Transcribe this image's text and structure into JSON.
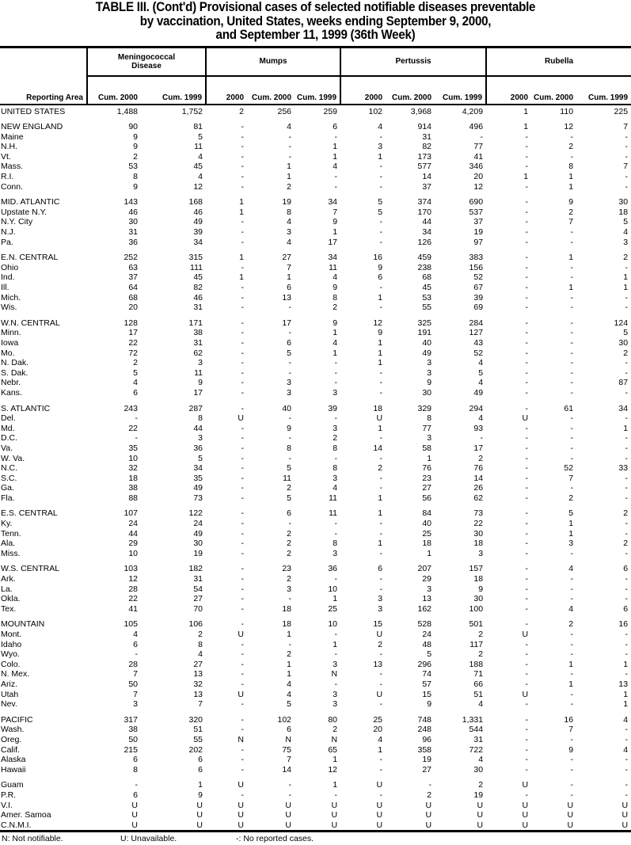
{
  "title": {
    "line1": "TABLE III. (Cont'd) Provisional cases of selected notifiable diseases preventable",
    "line2": "by vaccination, United States, weeks ending September 9, 2000,",
    "line3": "and September 11, 1999 (36th Week)"
  },
  "header": {
    "reporting_area": "Reporting Area",
    "groups": [
      "Meningococcal Disease",
      "Mumps",
      "Pertussis",
      "Rubella"
    ],
    "columns": [
      "Cum. 2000",
      "Cum. 1999",
      "2000",
      "Cum. 2000",
      "Cum. 1999",
      "2000",
      "Cum. 2000",
      "Cum. 1999",
      "2000",
      "Cum. 2000",
      "Cum. 1999"
    ]
  },
  "rows": [
    {
      "area": "UNITED STATES",
      "group": true,
      "values": [
        "1,488",
        "1,752",
        "2",
        "256",
        "259",
        "102",
        "3,968",
        "4,209",
        "1",
        "110",
        "225"
      ]
    },
    {
      "area": "NEW ENGLAND",
      "group": true,
      "values": [
        "90",
        "81",
        "-",
        "4",
        "6",
        "4",
        "914",
        "496",
        "1",
        "12",
        "7"
      ]
    },
    {
      "area": "Maine",
      "values": [
        "9",
        "5",
        "-",
        "-",
        "-",
        "-",
        "31",
        "-",
        "-",
        "-",
        "-"
      ]
    },
    {
      "area": "N.H.",
      "values": [
        "9",
        "11",
        "-",
        "-",
        "1",
        "3",
        "82",
        "77",
        "-",
        "2",
        "-"
      ]
    },
    {
      "area": "Vt.",
      "values": [
        "2",
        "4",
        "-",
        "-",
        "1",
        "1",
        "173",
        "41",
        "-",
        "-",
        "-"
      ]
    },
    {
      "area": "Mass.",
      "values": [
        "53",
        "45",
        "-",
        "1",
        "4",
        "-",
        "577",
        "346",
        "-",
        "8",
        "7"
      ]
    },
    {
      "area": "R.I.",
      "values": [
        "8",
        "4",
        "-",
        "1",
        "-",
        "-",
        "14",
        "20",
        "1",
        "1",
        "-"
      ]
    },
    {
      "area": "Conn.",
      "values": [
        "9",
        "12",
        "-",
        "2",
        "-",
        "-",
        "37",
        "12",
        "-",
        "1",
        "-"
      ]
    },
    {
      "area": "MID. ATLANTIC",
      "group": true,
      "values": [
        "143",
        "168",
        "1",
        "19",
        "34",
        "5",
        "374",
        "690",
        "-",
        "9",
        "30"
      ]
    },
    {
      "area": "Upstate N.Y.",
      "values": [
        "46",
        "46",
        "1",
        "8",
        "7",
        "5",
        "170",
        "537",
        "-",
        "2",
        "18"
      ]
    },
    {
      "area": "N.Y. City",
      "values": [
        "30",
        "49",
        "-",
        "4",
        "9",
        "-",
        "44",
        "37",
        "-",
        "7",
        "5"
      ]
    },
    {
      "area": "N.J.",
      "values": [
        "31",
        "39",
        "-",
        "3",
        "1",
        "-",
        "34",
        "19",
        "-",
        "-",
        "4"
      ]
    },
    {
      "area": "Pa.",
      "values": [
        "36",
        "34",
        "-",
        "4",
        "17",
        "-",
        "126",
        "97",
        "-",
        "-",
        "3"
      ]
    },
    {
      "area": "E.N. CENTRAL",
      "group": true,
      "values": [
        "252",
        "315",
        "1",
        "27",
        "34",
        "16",
        "459",
        "383",
        "-",
        "1",
        "2"
      ]
    },
    {
      "area": "Ohio",
      "values": [
        "63",
        "111",
        "-",
        "7",
        "11",
        "9",
        "238",
        "156",
        "-",
        "-",
        "-"
      ]
    },
    {
      "area": "Ind.",
      "values": [
        "37",
        "45",
        "1",
        "1",
        "4",
        "6",
        "68",
        "52",
        "-",
        "-",
        "1"
      ]
    },
    {
      "area": "Ill.",
      "values": [
        "64",
        "82",
        "-",
        "6",
        "9",
        "-",
        "45",
        "67",
        "-",
        "1",
        "1"
      ]
    },
    {
      "area": "Mich.",
      "values": [
        "68",
        "46",
        "-",
        "13",
        "8",
        "1",
        "53",
        "39",
        "-",
        "-",
        "-"
      ]
    },
    {
      "area": "Wis.",
      "values": [
        "20",
        "31",
        "-",
        "-",
        "2",
        "-",
        "55",
        "69",
        "-",
        "-",
        "-"
      ]
    },
    {
      "area": "W.N. CENTRAL",
      "group": true,
      "values": [
        "128",
        "171",
        "-",
        "17",
        "9",
        "12",
        "325",
        "284",
        "-",
        "-",
        "124"
      ]
    },
    {
      "area": "Minn.",
      "values": [
        "17",
        "38",
        "-",
        "-",
        "1",
        "9",
        "191",
        "127",
        "-",
        "-",
        "5"
      ]
    },
    {
      "area": "Iowa",
      "values": [
        "22",
        "31",
        "-",
        "6",
        "4",
        "1",
        "40",
        "43",
        "-",
        "-",
        "30"
      ]
    },
    {
      "area": "Mo.",
      "values": [
        "72",
        "62",
        "-",
        "5",
        "1",
        "1",
        "49",
        "52",
        "-",
        "-",
        "2"
      ]
    },
    {
      "area": "N. Dak.",
      "values": [
        "2",
        "3",
        "-",
        "-",
        "-",
        "1",
        "3",
        "4",
        "-",
        "-",
        "-"
      ]
    },
    {
      "area": "S. Dak.",
      "values": [
        "5",
        "11",
        "-",
        "-",
        "-",
        "-",
        "3",
        "5",
        "-",
        "-",
        "-"
      ]
    },
    {
      "area": "Nebr.",
      "values": [
        "4",
        "9",
        "-",
        "3",
        "-",
        "-",
        "9",
        "4",
        "-",
        "-",
        "87"
      ]
    },
    {
      "area": "Kans.",
      "values": [
        "6",
        "17",
        "-",
        "3",
        "3",
        "-",
        "30",
        "49",
        "-",
        "-",
        "-"
      ]
    },
    {
      "area": "S. ATLANTIC",
      "group": true,
      "values": [
        "243",
        "287",
        "-",
        "40",
        "39",
        "18",
        "329",
        "294",
        "-",
        "61",
        "34"
      ]
    },
    {
      "area": "Del.",
      "values": [
        "-",
        "8",
        "U",
        "-",
        "-",
        "U",
        "8",
        "4",
        "U",
        "-",
        "-"
      ]
    },
    {
      "area": "Md.",
      "values": [
        "22",
        "44",
        "-",
        "9",
        "3",
        "1",
        "77",
        "93",
        "-",
        "-",
        "1"
      ]
    },
    {
      "area": "D.C.",
      "values": [
        "-",
        "3",
        "-",
        "-",
        "2",
        "-",
        "3",
        "-",
        "-",
        "-",
        "-"
      ]
    },
    {
      "area": "Va.",
      "values": [
        "35",
        "36",
        "-",
        "8",
        "8",
        "14",
        "58",
        "17",
        "-",
        "-",
        "-"
      ]
    },
    {
      "area": "W. Va.",
      "values": [
        "10",
        "5",
        "-",
        "-",
        "-",
        "-",
        "1",
        "2",
        "-",
        "-",
        "-"
      ]
    },
    {
      "area": "N.C.",
      "values": [
        "32",
        "34",
        "-",
        "5",
        "8",
        "2",
        "76",
        "76",
        "-",
        "52",
        "33"
      ]
    },
    {
      "area": "S.C.",
      "values": [
        "18",
        "35",
        "-",
        "11",
        "3",
        "-",
        "23",
        "14",
        "-",
        "7",
        "-"
      ]
    },
    {
      "area": "Ga.",
      "values": [
        "38",
        "49",
        "-",
        "2",
        "4",
        "-",
        "27",
        "26",
        "-",
        "-",
        "-"
      ]
    },
    {
      "area": "Fla.",
      "values": [
        "88",
        "73",
        "-",
        "5",
        "11",
        "1",
        "56",
        "62",
        "-",
        "2",
        "-"
      ]
    },
    {
      "area": "E.S. CENTRAL",
      "group": true,
      "values": [
        "107",
        "122",
        "-",
        "6",
        "11",
        "1",
        "84",
        "73",
        "-",
        "5",
        "2"
      ]
    },
    {
      "area": "Ky.",
      "values": [
        "24",
        "24",
        "-",
        "-",
        "-",
        "-",
        "40",
        "22",
        "-",
        "1",
        "-"
      ]
    },
    {
      "area": "Tenn.",
      "values": [
        "44",
        "49",
        "-",
        "2",
        "-",
        "-",
        "25",
        "30",
        "-",
        "1",
        "-"
      ]
    },
    {
      "area": "Ala.",
      "values": [
        "29",
        "30",
        "-",
        "2",
        "8",
        "1",
        "18",
        "18",
        "-",
        "3",
        "2"
      ]
    },
    {
      "area": "Miss.",
      "values": [
        "10",
        "19",
        "-",
        "2",
        "3",
        "-",
        "1",
        "3",
        "-",
        "-",
        "-"
      ]
    },
    {
      "area": "W.S. CENTRAL",
      "group": true,
      "values": [
        "103",
        "182",
        "-",
        "23",
        "36",
        "6",
        "207",
        "157",
        "-",
        "4",
        "6"
      ]
    },
    {
      "area": "Ark.",
      "values": [
        "12",
        "31",
        "-",
        "2",
        "-",
        "-",
        "29",
        "18",
        "-",
        "-",
        "-"
      ]
    },
    {
      "area": "La.",
      "values": [
        "28",
        "54",
        "-",
        "3",
        "10",
        "-",
        "3",
        "9",
        "-",
        "-",
        "-"
      ]
    },
    {
      "area": "Okla.",
      "values": [
        "22",
        "27",
        "-",
        "-",
        "1",
        "3",
        "13",
        "30",
        "-",
        "-",
        "-"
      ]
    },
    {
      "area": "Tex.",
      "values": [
        "41",
        "70",
        "-",
        "18",
        "25",
        "3",
        "162",
        "100",
        "-",
        "4",
        "6"
      ]
    },
    {
      "area": "MOUNTAIN",
      "group": true,
      "values": [
        "105",
        "106",
        "-",
        "18",
        "10",
        "15",
        "528",
        "501",
        "-",
        "2",
        "16"
      ]
    },
    {
      "area": "Mont.",
      "values": [
        "4",
        "2",
        "U",
        "1",
        "-",
        "U",
        "24",
        "2",
        "U",
        "-",
        "-"
      ]
    },
    {
      "area": "Idaho",
      "values": [
        "6",
        "8",
        "-",
        "-",
        "1",
        "2",
        "48",
        "117",
        "-",
        "-",
        "-"
      ]
    },
    {
      "area": "Wyo.",
      "values": [
        "-",
        "4",
        "-",
        "2",
        "-",
        "-",
        "5",
        "2",
        "-",
        "-",
        "-"
      ]
    },
    {
      "area": "Colo.",
      "values": [
        "28",
        "27",
        "-",
        "1",
        "3",
        "13",
        "296",
        "188",
        "-",
        "1",
        "1"
      ]
    },
    {
      "area": "N. Mex.",
      "values": [
        "7",
        "13",
        "-",
        "1",
        "N",
        "-",
        "74",
        "71",
        "-",
        "-",
        "-"
      ]
    },
    {
      "area": "Ariz.",
      "values": [
        "50",
        "32",
        "-",
        "4",
        "-",
        "-",
        "57",
        "66",
        "-",
        "1",
        "13"
      ]
    },
    {
      "area": "Utah",
      "values": [
        "7",
        "13",
        "U",
        "4",
        "3",
        "U",
        "15",
        "51",
        "U",
        "-",
        "1"
      ]
    },
    {
      "area": "Nev.",
      "values": [
        "3",
        "7",
        "-",
        "5",
        "3",
        "-",
        "9",
        "4",
        "-",
        "-",
        "1"
      ]
    },
    {
      "area": "PACIFIC",
      "group": true,
      "values": [
        "317",
        "320",
        "-",
        "102",
        "80",
        "25",
        "748",
        "1,331",
        "-",
        "16",
        "4"
      ]
    },
    {
      "area": "Wash.",
      "values": [
        "38",
        "51",
        "-",
        "6",
        "2",
        "20",
        "248",
        "544",
        "-",
        "7",
        "-"
      ]
    },
    {
      "area": "Oreg.",
      "values": [
        "50",
        "55",
        "N",
        "N",
        "N",
        "4",
        "96",
        "31",
        "-",
        "-",
        "-"
      ]
    },
    {
      "area": "Calif.",
      "values": [
        "215",
        "202",
        "-",
        "75",
        "65",
        "1",
        "358",
        "722",
        "-",
        "9",
        "4"
      ]
    },
    {
      "area": "Alaska",
      "values": [
        "6",
        "6",
        "-",
        "7",
        "1",
        "-",
        "19",
        "4",
        "-",
        "-",
        "-"
      ]
    },
    {
      "area": "Hawaii",
      "values": [
        "8",
        "6",
        "-",
        "14",
        "12",
        "-",
        "27",
        "30",
        "-",
        "-",
        "-"
      ]
    },
    {
      "area": "Guam",
      "group": true,
      "values": [
        "-",
        "1",
        "U",
        "-",
        "1",
        "U",
        "-",
        "2",
        "U",
        "-",
        "-"
      ]
    },
    {
      "area": "P.R.",
      "values": [
        "6",
        "9",
        "-",
        "-",
        "-",
        "-",
        "2",
        "19",
        "-",
        "-",
        "-"
      ]
    },
    {
      "area": "V.I.",
      "values": [
        "U",
        "U",
        "U",
        "U",
        "U",
        "U",
        "U",
        "U",
        "U",
        "U",
        "U"
      ]
    },
    {
      "area": "Amer. Samoa",
      "values": [
        "U",
        "U",
        "U",
        "U",
        "U",
        "U",
        "U",
        "U",
        "U",
        "U",
        "U"
      ]
    },
    {
      "area": "C.N.M.I.",
      "values": [
        "U",
        "U",
        "U",
        "U",
        "U",
        "U",
        "U",
        "U",
        "U",
        "U",
        "U"
      ]
    }
  ],
  "footnotes": {
    "n": "N: Not notifiable.",
    "u": "U: Unavailable.",
    "dash": "-: No reported cases."
  }
}
